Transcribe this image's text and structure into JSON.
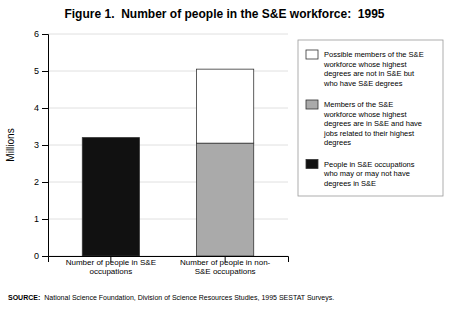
{
  "chart_data": {
    "type": "bar",
    "title": "Figure 1.  Number of people in the S&E workforce:  1995",
    "ylabel": "Millions",
    "categories": [
      "Number of people in S&E\noccupations",
      "Number of people in non-\nS&E occupations"
    ],
    "series": [
      {
        "name": "Possible members of the S&E\nworkforce whose highest\ndegrees are not in S&E but\nwho have S&E degrees",
        "color": "#ffffff",
        "values": [
          null,
          2.0
        ]
      },
      {
        "name": "Members of the S&E\nworkforce whose highest\ndegrees are in S&E and have\njobs related to their highest\ndegrees",
        "color": "#aaaaaa",
        "values": [
          null,
          3.05
        ]
      },
      {
        "name": "People in S&E occupations\nwho may or may not have\ndegrees in S&E",
        "color": "#111111",
        "values": [
          3.2,
          null
        ]
      }
    ],
    "stacked": true,
    "ylim": [
      0,
      6
    ],
    "yticks": [
      0,
      1,
      2,
      3,
      4,
      5,
      6
    ],
    "grid": true,
    "legend": "right",
    "annotations": [
      "SOURCE:",
      "National Science Foundation, Division of Science Resources Studies, 1995 SESTAT Surveys."
    ]
  }
}
